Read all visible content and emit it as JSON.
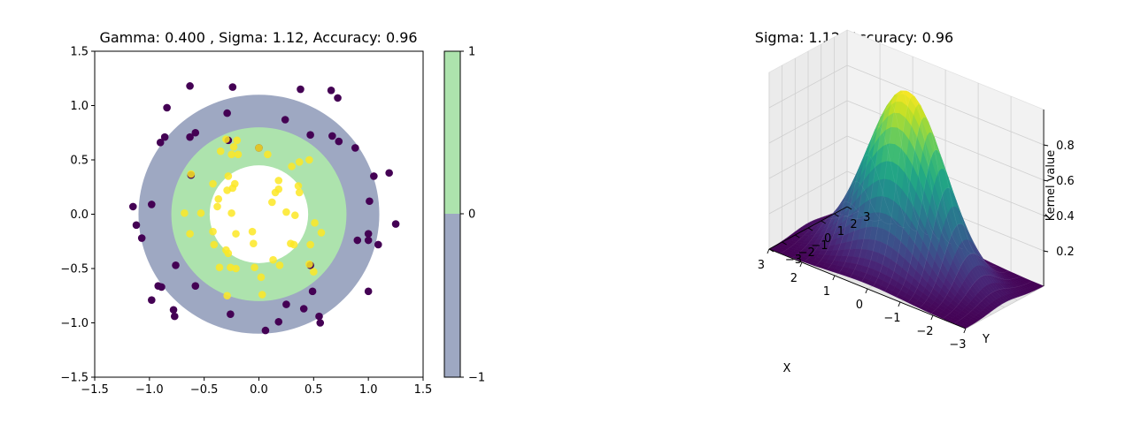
{
  "chart_data": [
    {
      "type": "scatter",
      "title": "Gamma: 0.400 , Sigma: 1.12, Accuracy: 0.96",
      "xlim": [
        -1.5,
        1.5
      ],
      "ylim": [
        -1.5,
        1.5
      ],
      "xticks": [
        "−1.5",
        "−1.0",
        "−0.5",
        "0.0",
        "0.5",
        "1.0",
        "1.5"
      ],
      "yticks": [
        "−1.5",
        "−1.0",
        "−0.5",
        "0.0",
        "0.5",
        "1.0",
        "1.5"
      ],
      "regions": {
        "outer_ring_radius": 1.1,
        "inner_ring_radius": 0.8,
        "hole_radius": 0.45,
        "outer_class": -1,
        "inner_class": 0
      },
      "colors": {
        "region_neg": "#9ea8c2",
        "region_zero": "#ade3ad",
        "class_outer": "#440154",
        "class_inner": "#fde725"
      },
      "colorbar": {
        "ticks": [
          "1",
          "0",
          "−1"
        ],
        "levels": [
          1,
          0,
          -1
        ]
      },
      "series": [
        {
          "class": "outer",
          "points": [
            [
              -0.63,
              1.18
            ],
            [
              -0.24,
              1.17
            ],
            [
              0.38,
              1.15
            ],
            [
              0.66,
              1.14
            ],
            [
              0.72,
              1.07
            ],
            [
              -0.84,
              0.98
            ],
            [
              -0.29,
              0.93
            ],
            [
              0.24,
              0.87
            ],
            [
              -0.86,
              0.71
            ],
            [
              -0.9,
              0.66
            ],
            [
              -0.58,
              0.75
            ],
            [
              -0.63,
              0.71
            ],
            [
              0.47,
              0.73
            ],
            [
              0.67,
              0.72
            ],
            [
              0.73,
              0.67
            ],
            [
              0.88,
              0.61
            ],
            [
              -0.28,
              0.68
            ],
            [
              0.0,
              0.61
            ],
            [
              -0.62,
              0.36
            ],
            [
              1.05,
              0.35
            ],
            [
              1.19,
              0.38
            ],
            [
              -1.15,
              0.07
            ],
            [
              -0.98,
              0.09
            ],
            [
              1.01,
              0.12
            ],
            [
              -1.12,
              -0.1
            ],
            [
              -1.07,
              -0.22
            ],
            [
              1.25,
              -0.09
            ],
            [
              1.0,
              -0.18
            ],
            [
              0.9,
              -0.24
            ],
            [
              1.0,
              -0.24
            ],
            [
              1.09,
              -0.28
            ],
            [
              -0.76,
              -0.47
            ],
            [
              0.47,
              -0.47
            ],
            [
              -0.58,
              -0.66
            ],
            [
              -0.92,
              -0.66
            ],
            [
              -0.89,
              -0.67
            ],
            [
              0.49,
              -0.71
            ],
            [
              1.0,
              -0.71
            ],
            [
              -0.98,
              -0.79
            ],
            [
              0.25,
              -0.83
            ],
            [
              0.41,
              -0.87
            ],
            [
              -0.78,
              -0.88
            ],
            [
              -0.77,
              -0.94
            ],
            [
              -0.26,
              -0.92
            ],
            [
              0.55,
              -0.94
            ],
            [
              0.56,
              -1.0
            ],
            [
              0.18,
              -0.99
            ],
            [
              0.06,
              -1.07
            ]
          ]
        },
        {
          "class": "inner",
          "points": [
            [
              -0.2,
              0.68
            ],
            [
              -0.23,
              0.62
            ],
            [
              -0.35,
              0.58
            ],
            [
              -0.25,
              0.55
            ],
            [
              -0.19,
              0.55
            ],
            [
              0.08,
              0.55
            ],
            [
              0.46,
              0.5
            ],
            [
              0.37,
              0.48
            ],
            [
              0.3,
              0.44
            ],
            [
              -0.28,
              0.35
            ],
            [
              -0.22,
              0.28
            ],
            [
              -0.29,
              0.22
            ],
            [
              -0.24,
              0.24
            ],
            [
              0.18,
              0.31
            ],
            [
              0.36,
              0.26
            ],
            [
              0.18,
              0.23
            ],
            [
              0.15,
              0.2
            ],
            [
              0.37,
              0.2
            ],
            [
              -0.42,
              0.28
            ],
            [
              -0.37,
              0.14
            ],
            [
              -0.38,
              0.07
            ],
            [
              0.12,
              0.11
            ],
            [
              0.25,
              0.02
            ],
            [
              0.33,
              -0.01
            ],
            [
              -0.25,
              0.01
            ],
            [
              -0.68,
              0.01
            ],
            [
              -0.53,
              0.01
            ],
            [
              -0.63,
              -0.18
            ],
            [
              0.51,
              -0.08
            ],
            [
              -0.42,
              -0.16
            ],
            [
              -0.21,
              -0.18
            ],
            [
              -0.06,
              -0.16
            ],
            [
              0.57,
              -0.17
            ],
            [
              -0.41,
              -0.28
            ],
            [
              -0.05,
              -0.27
            ],
            [
              0.29,
              -0.27
            ],
            [
              0.32,
              -0.28
            ],
            [
              -0.3,
              -0.33
            ],
            [
              -0.28,
              -0.36
            ],
            [
              0.47,
              -0.28
            ],
            [
              -0.36,
              -0.49
            ],
            [
              -0.26,
              -0.49
            ],
            [
              -0.21,
              -0.5
            ],
            [
              -0.04,
              -0.49
            ],
            [
              0.13,
              -0.42
            ],
            [
              0.19,
              -0.47
            ],
            [
              0.5,
              -0.53
            ],
            [
              0.02,
              -0.58
            ],
            [
              -0.29,
              -0.75
            ],
            [
              0.03,
              -0.74
            ],
            [
              -0.62,
              0.37
            ],
            [
              -0.3,
              0.69
            ],
            [
              0.0,
              0.61
            ],
            [
              0.46,
              -0.46
            ]
          ]
        }
      ]
    },
    {
      "type": "surface3d",
      "title": "Sigma: 1.12, Accuracy: 0.96",
      "xlabel": "X",
      "ylabel": "Y",
      "zlabel": "Kernel value",
      "xlim": [
        -3,
        3
      ],
      "ylim": [
        -3,
        3
      ],
      "sigma": 1.12,
      "xticks": [
        "−3",
        "−2",
        "−1",
        "0",
        "1",
        "2",
        "3"
      ],
      "yticks": [
        "−3",
        "−2",
        "−1",
        "0",
        "1",
        "2",
        "3"
      ],
      "zticks": [
        "0.2",
        "0.4",
        "0.6",
        "0.8"
      ],
      "colormap": "viridis"
    }
  ]
}
